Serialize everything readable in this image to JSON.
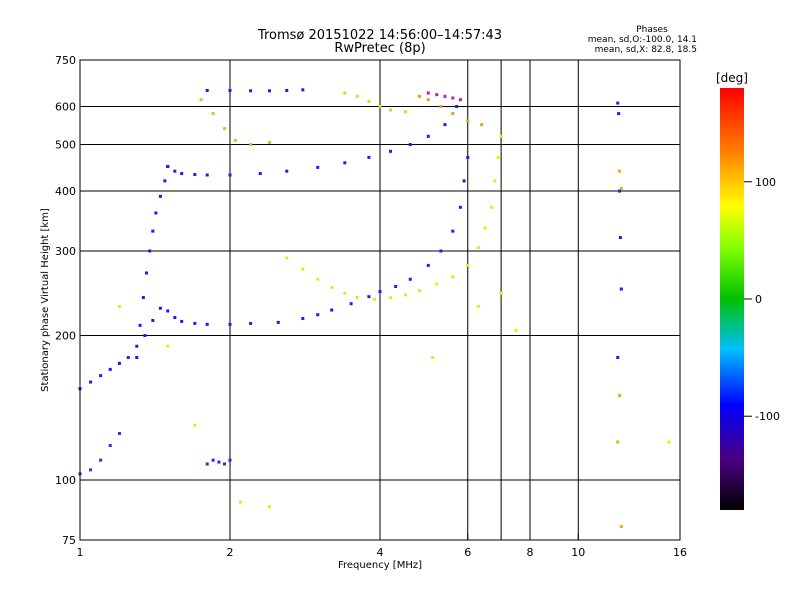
{
  "chart_data": {
    "type": "scatter",
    "title": "Tromsø 20151022 14:56:00–14:57:43",
    "subtitle": "RwPretec (8p)",
    "xlabel": "Frequency [MHz]",
    "ylabel": "Stationary phase Virtual Height [km]",
    "x_scale": "log",
    "y_scale": "log",
    "xlim": [
      1,
      16
    ],
    "ylim": [
      75,
      750
    ],
    "x_ticks": [
      1,
      2,
      4,
      6,
      8,
      10,
      16
    ],
    "y_ticks": [
      75,
      100,
      200,
      300,
      400,
      500,
      600,
      750
    ],
    "x_gridlines": [
      2,
      4,
      6,
      7,
      8,
      10
    ],
    "y_gridlines": [
      100,
      200,
      300,
      400,
      500,
      600
    ],
    "stats": {
      "title": "Phases",
      "line1": "mean, sd,O:-100.0, 14.1",
      "line2": "mean, sd,X:  82.8, 18.5"
    },
    "colorbar": {
      "label": "[deg]",
      "range": [
        -180,
        180
      ],
      "ticks": [
        100,
        0,
        -100
      ]
    },
    "series": [
      {
        "color": "#1a1aff",
        "x": [
          1.0,
          1.05,
          1.1,
          1.15,
          1.2,
          1.25,
          1.3,
          1.35,
          1.4,
          1.45,
          1.5,
          1.55,
          1.6,
          1.7,
          1.8,
          2.0,
          2.2,
          2.5,
          2.8,
          3.0,
          3.2,
          3.5,
          3.8,
          4.0,
          4.3,
          4.6,
          5.0,
          5.3,
          5.6,
          5.8,
          5.9,
          6.0
        ],
        "y": [
          155,
          160,
          165,
          170,
          175,
          180,
          190,
          200,
          215,
          228,
          225,
          218,
          214,
          212,
          211,
          211,
          212,
          213,
          217,
          221,
          226,
          233,
          241,
          247,
          253,
          262,
          280,
          300,
          330,
          370,
          420,
          470
        ]
      },
      {
        "color": "#1a1aff",
        "x": [
          1.3,
          1.32,
          1.34,
          1.36,
          1.38,
          1.4,
          1.42,
          1.45,
          1.48,
          1.5
        ],
        "y": [
          180,
          210,
          240,
          270,
          300,
          330,
          360,
          390,
          420,
          450
        ]
      },
      {
        "color": "#1a1aff",
        "x": [
          1.5,
          1.55,
          1.6,
          1.7,
          1.8,
          2.0,
          2.3,
          2.6,
          3.0,
          3.4,
          3.8,
          4.2,
          4.6,
          5.0,
          5.4,
          5.7
        ],
        "y": [
          450,
          440,
          435,
          433,
          432,
          432,
          435,
          440,
          448,
          458,
          470,
          484,
          500,
          520,
          550,
          600
        ]
      },
      {
        "color": "#1a1aff",
        "x": [
          1.8,
          2.0,
          2.2,
          2.4,
          2.6,
          2.8
        ],
        "y": [
          648,
          648,
          647,
          647,
          648,
          650
        ]
      },
      {
        "color": "#3b30d0",
        "x": [
          1.0,
          1.05,
          1.1,
          1.15,
          1.2
        ],
        "y": [
          103,
          105,
          110,
          118,
          125
        ]
      },
      {
        "color": "#2a2ae0",
        "x": [
          1.8,
          1.85,
          1.9,
          1.95,
          2.0
        ],
        "y": [
          108,
          110,
          109,
          108,
          110
        ]
      },
      {
        "color": "#e8e81a",
        "x": [
          2.6,
          2.8,
          3.0,
          3.2,
          3.4,
          3.6,
          3.9,
          4.2,
          4.5,
          4.8,
          5.2,
          5.6,
          6.0,
          6.3,
          6.5,
          6.7,
          6.8,
          6.9,
          7.0
        ],
        "y": [
          290,
          275,
          262,
          252,
          245,
          240,
          238,
          240,
          243,
          248,
          256,
          265,
          280,
          305,
          335,
          370,
          420,
          470,
          520
        ]
      },
      {
        "color": "#a0e020",
        "x": [
          1.75,
          1.85,
          1.95,
          2.05,
          2.2,
          2.4
        ],
        "y": [
          620,
          580,
          540,
          510,
          500,
          505
        ]
      },
      {
        "color": "#c8e020",
        "x": [
          3.4,
          3.6,
          3.8,
          4.0,
          4.2,
          4.5
        ],
        "y": [
          640,
          630,
          615,
          600,
          590,
          585
        ]
      },
      {
        "color": "#e0a020",
        "x": [
          4.8,
          5.0,
          5.3,
          5.6,
          6.0,
          6.4
        ],
        "y": [
          630,
          620,
          600,
          580,
          560,
          550
        ]
      },
      {
        "color": "#c020a0",
        "x": [
          5.0,
          5.2,
          5.4,
          5.6,
          5.8
        ],
        "y": [
          640,
          635,
          630,
          625,
          620
        ]
      },
      {
        "color": "#1a1aff",
        "x": [
          12.0,
          12.05,
          12.1,
          12.15,
          12.2,
          12.0
        ],
        "y": [
          610,
          580,
          400,
          320,
          250,
          180
        ]
      },
      {
        "color": "#e8b010",
        "x": [
          12.1,
          12.2,
          12.1,
          12.0,
          12.2
        ],
        "y": [
          440,
          405,
          150,
          120,
          80
        ]
      },
      {
        "color": "#e8e81a",
        "x": [
          1.2,
          1.5,
          1.7,
          2.1,
          2.4,
          5.1,
          6.3,
          7.0,
          7.5,
          15.2
        ],
        "y": [
          230,
          190,
          130,
          90,
          88,
          180,
          230,
          245,
          205,
          120
        ]
      }
    ]
  }
}
